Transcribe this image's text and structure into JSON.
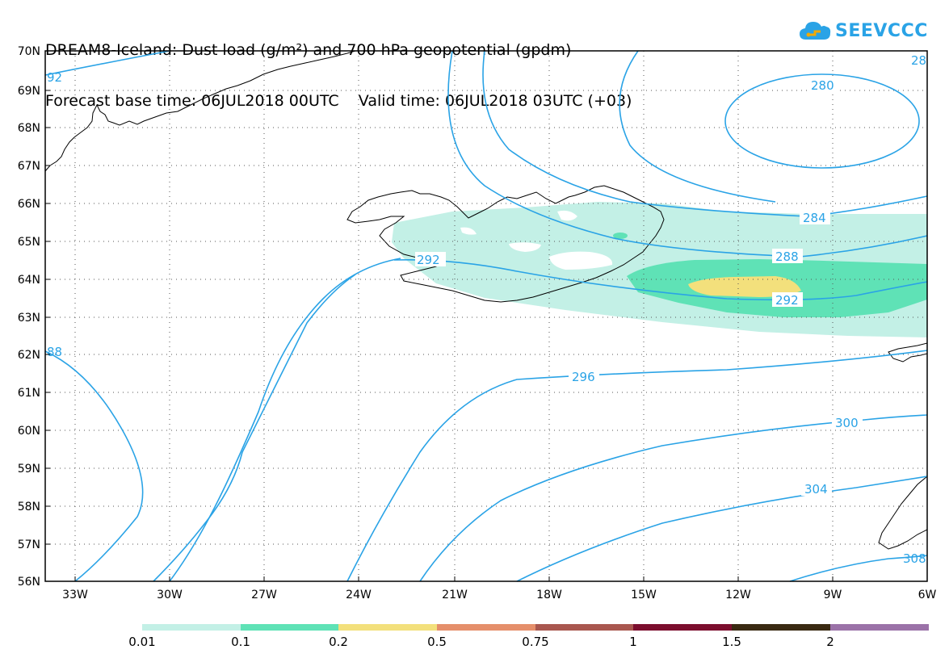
{
  "title": {
    "line1": "DREAM8-Iceland: Dust load (g/m²) and 700 hPa geopotential (gpdm)",
    "line2": "Forecast base time: 06JUL2018 00UTC    Valid time: 06JUL2018 03UTC (+03)"
  },
  "logo": {
    "text": "SEEVCCC",
    "icon": "cloud-icon"
  },
  "axes": {
    "lat_labels": [
      "70N",
      "69N",
      "68N",
      "67N",
      "66N",
      "65N",
      "64N",
      "63N",
      "62N",
      "61N",
      "60N",
      "59N",
      "58N",
      "57N",
      "56N"
    ],
    "lon_labels": [
      "33W",
      "30W",
      "27W",
      "24W",
      "21W",
      "18W",
      "15W",
      "12W",
      "9W",
      "6W"
    ]
  },
  "contours": {
    "labels": [
      "280",
      "284",
      "288",
      "292",
      "296",
      "300",
      "304",
      "92",
      "88",
      "28",
      "292",
      "308"
    ]
  },
  "colorbar": {
    "colors": [
      "#c3f0e6",
      "#5fe2b6",
      "#f3e07c",
      "#e58f6b",
      "#a9574f",
      "#7c0e2e",
      "#3a2a12",
      "#9b72a8"
    ],
    "labels": [
      "0.01",
      "0.1",
      "0.2",
      "0.5",
      "0.75",
      "1",
      "1.5",
      "2"
    ]
  },
  "colors": {
    "contour": "#2aa3e6",
    "grid": "#555555"
  }
}
